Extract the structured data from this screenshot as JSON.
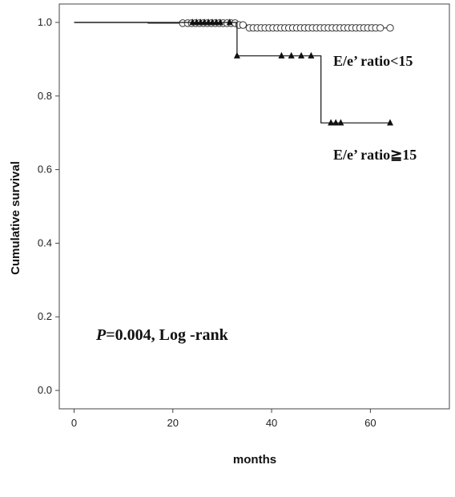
{
  "chart_data": {
    "type": "line",
    "subtype": "kaplan-meier step",
    "xlabel": "months",
    "ylabel": "Cumulative survival",
    "xlim": [
      -3,
      76
    ],
    "ylim": [
      -0.05,
      1.05
    ],
    "x_ticks": [
      0,
      20,
      40,
      60
    ],
    "x_tick_labels": [
      "0",
      "20",
      "40",
      "60"
    ],
    "y_ticks": [
      0.0,
      0.2,
      0.4,
      0.6,
      0.8,
      1.0
    ],
    "y_tick_labels": [
      "0.0",
      "0.2",
      "0.4",
      "0.6",
      "0.8",
      "1.0"
    ],
    "grid": false,
    "annotation": {
      "italic_part": "P",
      "rest": "=0.004, Log -rank"
    },
    "series": [
      {
        "name": "E/e’ ratio<15",
        "marker": "circle-open",
        "steps": [
          [
            0,
            1.0
          ],
          [
            15,
            1.0
          ],
          [
            15,
            0.998
          ],
          [
            33,
            0.998
          ],
          [
            33,
            0.993
          ],
          [
            35,
            0.993
          ],
          [
            35,
            0.985
          ],
          [
            64,
            0.985
          ]
        ],
        "censored_x": [
          22,
          23,
          23.8,
          24.6,
          25.4,
          26.2,
          27,
          27.8,
          28.6,
          29.4,
          30.2,
          31,
          31.8,
          32.6,
          33.4,
          34.2,
          35.5,
          36.3,
          37.1,
          37.9,
          38.7,
          39.5,
          40.3,
          41.1,
          41.9,
          42.7,
          43.5,
          44.3,
          45.1,
          45.9,
          46.7,
          47.5,
          48.3,
          49.1,
          49.9,
          50.7,
          51.5,
          52.3,
          53.1,
          53.9,
          54.7,
          55.5,
          56.3,
          57.1,
          57.9,
          58.7,
          59.5,
          60.3,
          61.1,
          62,
          64
        ],
        "color": "#333333"
      },
      {
        "name": "E/e’ ratio≧15",
        "marker": "triangle-filled",
        "steps": [
          [
            0,
            1.0
          ],
          [
            33,
            1.0
          ],
          [
            33,
            0.909
          ],
          [
            50,
            0.909
          ],
          [
            50,
            0.727
          ],
          [
            64,
            0.727
          ]
        ],
        "censored_x": [
          24,
          24.8,
          25.6,
          26.4,
          27.2,
          28,
          28.8,
          29.6,
          31.5,
          33,
          42,
          44,
          46,
          48,
          52,
          53,
          54,
          64
        ],
        "color": "#111111"
      }
    ]
  }
}
